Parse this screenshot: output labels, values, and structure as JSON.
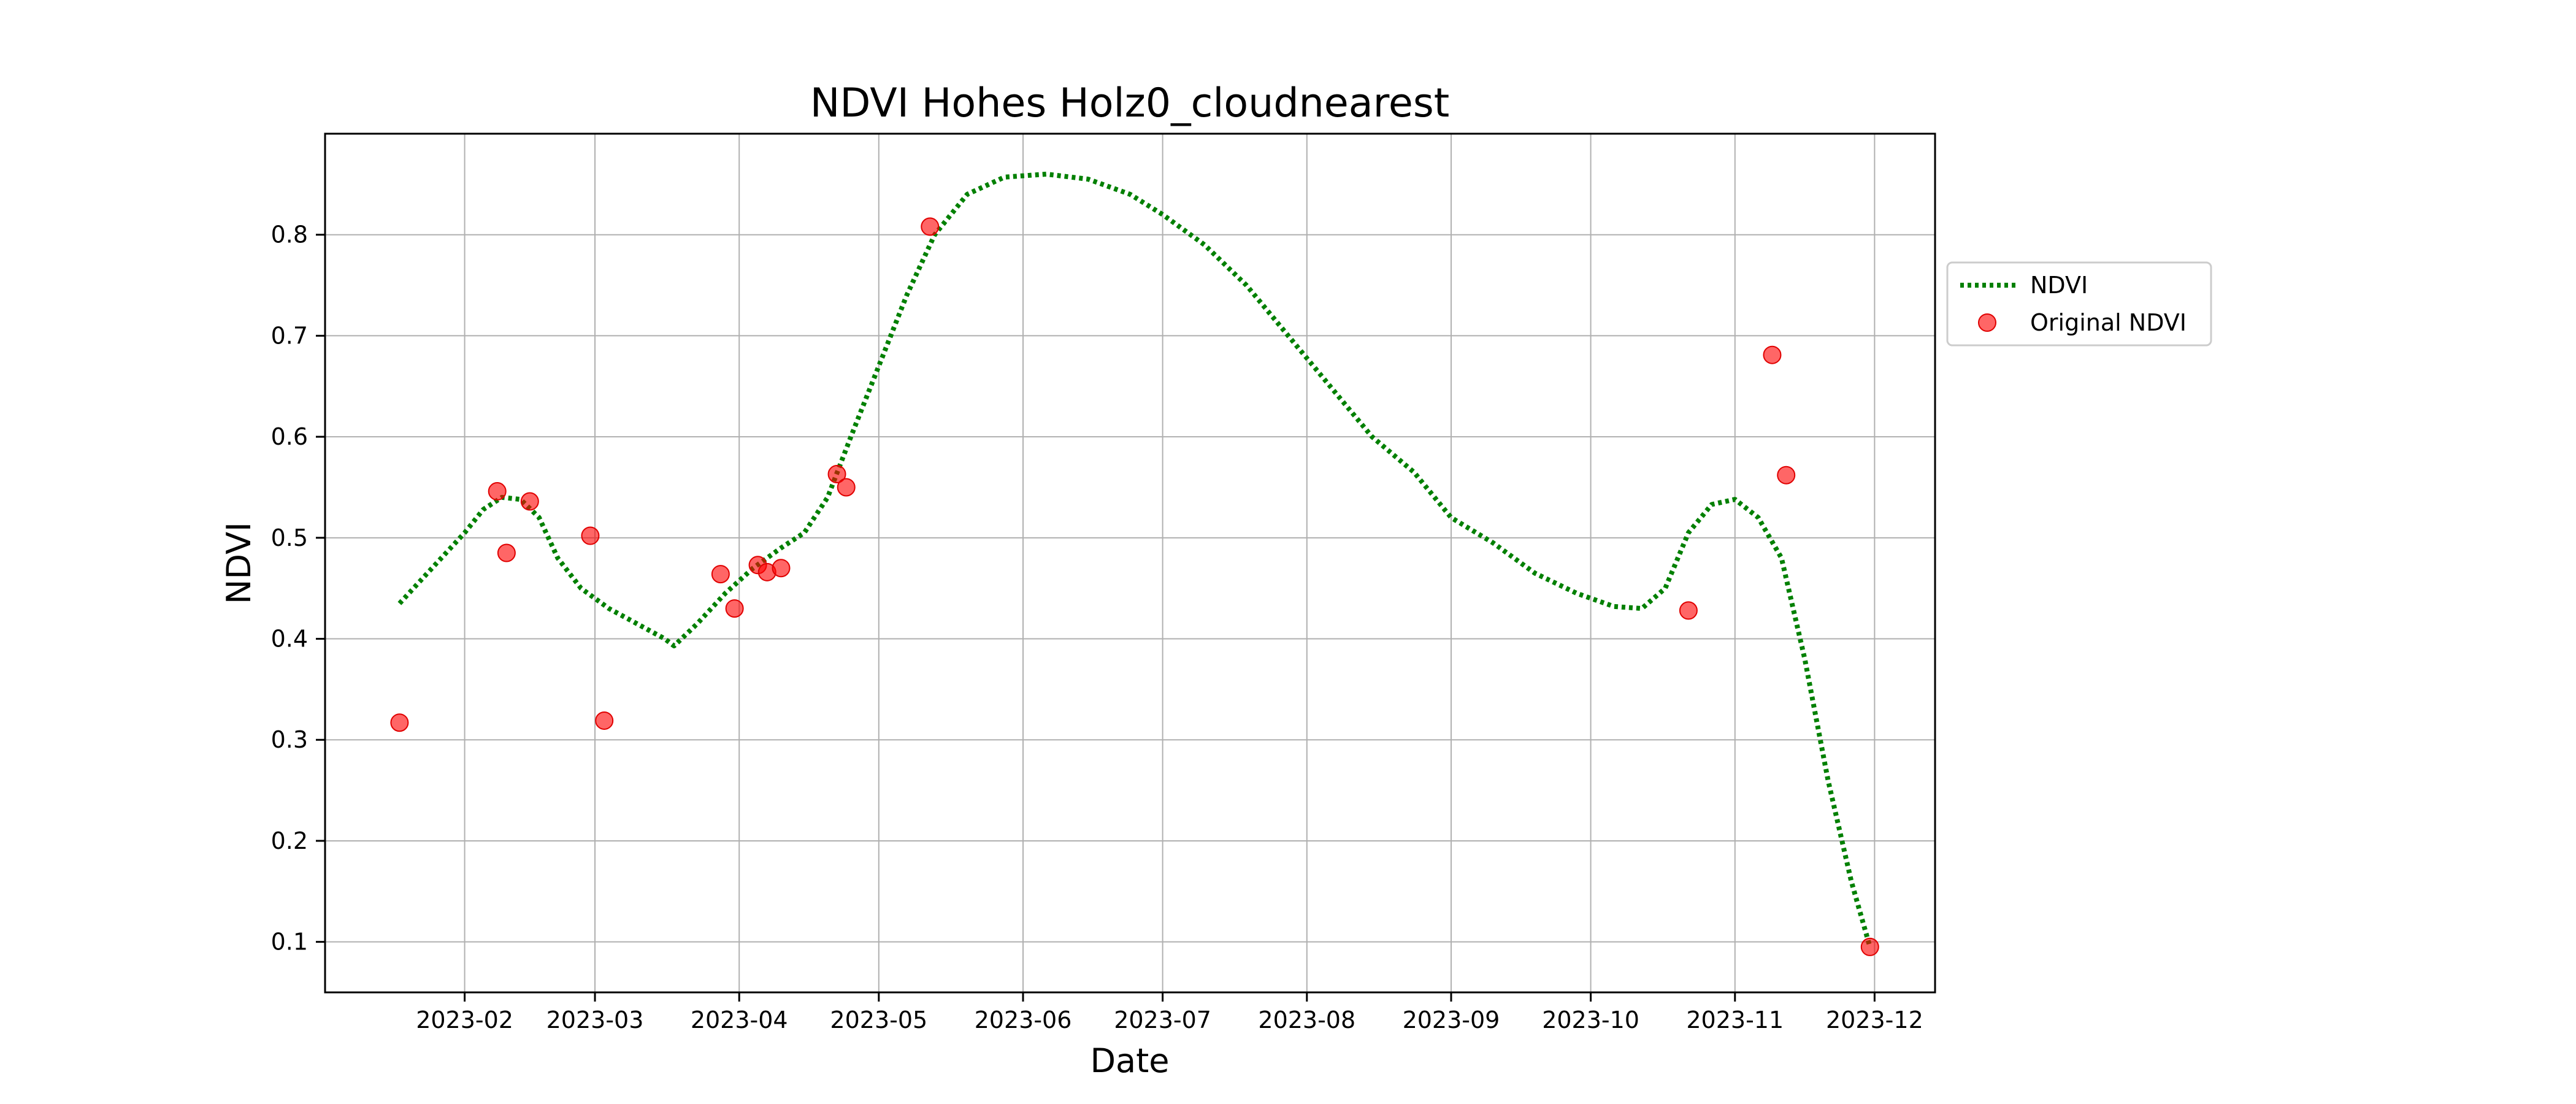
{
  "chart_data": {
    "type": "line",
    "title": "NDVI Hohes Holz0_cloudnearest",
    "xlabel": "Date",
    "ylabel": "NDVI",
    "x_axis": {
      "type": "date",
      "range": [
        "2023-01-02",
        "2023-12-14"
      ],
      "tick_values": [
        "2023-02-01",
        "2023-03-01",
        "2023-04-01",
        "2023-05-01",
        "2023-06-01",
        "2023-07-01",
        "2023-08-01",
        "2023-09-01",
        "2023-10-01",
        "2023-11-01",
        "2023-12-01"
      ],
      "tick_labels": [
        "2023-02",
        "2023-03",
        "2023-04",
        "2023-05",
        "2023-06",
        "2023-07",
        "2023-08",
        "2023-09",
        "2023-10",
        "2023-11",
        "2023-12"
      ]
    },
    "y_axis": {
      "range": [
        0.05,
        0.9
      ],
      "tick_values": [
        0.1,
        0.2,
        0.3,
        0.4,
        0.5,
        0.6,
        0.7,
        0.8
      ],
      "tick_labels": [
        "0.1",
        "0.2",
        "0.3",
        "0.4",
        "0.5",
        "0.6",
        "0.7",
        "0.8"
      ]
    },
    "grid": true,
    "legend": {
      "placement": "outside-right-upper",
      "entries": [
        "NDVI",
        "Original NDVI"
      ]
    },
    "series": [
      {
        "name": "NDVI",
        "kind": "line",
        "style": "dotted",
        "color": "#008000",
        "points": [
          [
            "2023-01-18",
            0.435
          ],
          [
            "2023-01-25",
            0.47
          ],
          [
            "2023-02-01",
            0.505
          ],
          [
            "2023-02-05",
            0.528
          ],
          [
            "2023-02-09",
            0.54
          ],
          [
            "2023-02-13",
            0.538
          ],
          [
            "2023-02-17",
            0.52
          ],
          [
            "2023-02-21",
            0.48
          ],
          [
            "2023-02-26",
            0.45
          ],
          [
            "2023-03-04",
            0.43
          ],
          [
            "2023-03-10",
            0.415
          ],
          [
            "2023-03-16",
            0.4
          ],
          [
            "2023-03-18",
            0.393
          ],
          [
            "2023-03-23",
            0.415
          ],
          [
            "2023-03-29",
            0.445
          ],
          [
            "2023-04-04",
            0.47
          ],
          [
            "2023-04-10",
            0.49
          ],
          [
            "2023-04-15",
            0.505
          ],
          [
            "2023-04-20",
            0.54
          ],
          [
            "2023-04-25",
            0.6
          ],
          [
            "2023-05-01",
            0.67
          ],
          [
            "2023-05-07",
            0.74
          ],
          [
            "2023-05-13",
            0.8
          ],
          [
            "2023-05-20",
            0.84
          ],
          [
            "2023-05-28",
            0.857
          ],
          [
            "2023-06-06",
            0.86
          ],
          [
            "2023-06-15",
            0.855
          ],
          [
            "2023-06-24",
            0.84
          ],
          [
            "2023-07-01",
            0.82
          ],
          [
            "2023-07-10",
            0.79
          ],
          [
            "2023-07-19",
            0.75
          ],
          [
            "2023-07-28",
            0.7
          ],
          [
            "2023-08-06",
            0.65
          ],
          [
            "2023-08-15",
            0.6
          ],
          [
            "2023-08-24",
            0.565
          ],
          [
            "2023-09-01",
            0.52
          ],
          [
            "2023-09-10",
            0.495
          ],
          [
            "2023-09-19",
            0.465
          ],
          [
            "2023-09-28",
            0.445
          ],
          [
            "2023-10-06",
            0.432
          ],
          [
            "2023-10-12",
            0.43
          ],
          [
            "2023-10-17",
            0.45
          ],
          [
            "2023-10-22",
            0.505
          ],
          [
            "2023-10-27",
            0.533
          ],
          [
            "2023-11-01",
            0.538
          ],
          [
            "2023-11-06",
            0.52
          ],
          [
            "2023-11-11",
            0.48
          ],
          [
            "2023-11-16",
            0.38
          ],
          [
            "2023-11-21",
            0.26
          ],
          [
            "2023-11-26",
            0.16
          ],
          [
            "2023-11-30",
            0.095
          ]
        ]
      },
      {
        "name": "Original NDVI",
        "kind": "scatter",
        "color": "#ff0000",
        "points": [
          [
            "2023-01-18",
            0.317
          ],
          [
            "2023-02-08",
            0.546
          ],
          [
            "2023-02-10",
            0.485
          ],
          [
            "2023-02-15",
            0.536
          ],
          [
            "2023-02-28",
            0.502
          ],
          [
            "2023-03-03",
            0.319
          ],
          [
            "2023-03-28",
            0.464
          ],
          [
            "2023-03-31",
            0.43
          ],
          [
            "2023-04-05",
            0.473
          ],
          [
            "2023-04-07",
            0.466
          ],
          [
            "2023-04-10",
            0.47
          ],
          [
            "2023-04-22",
            0.563
          ],
          [
            "2023-04-24",
            0.55
          ],
          [
            "2023-05-12",
            0.808
          ],
          [
            "2023-10-22",
            0.428
          ],
          [
            "2023-11-09",
            0.681
          ],
          [
            "2023-11-12",
            0.562
          ],
          [
            "2023-11-30",
            0.095
          ]
        ]
      }
    ]
  }
}
